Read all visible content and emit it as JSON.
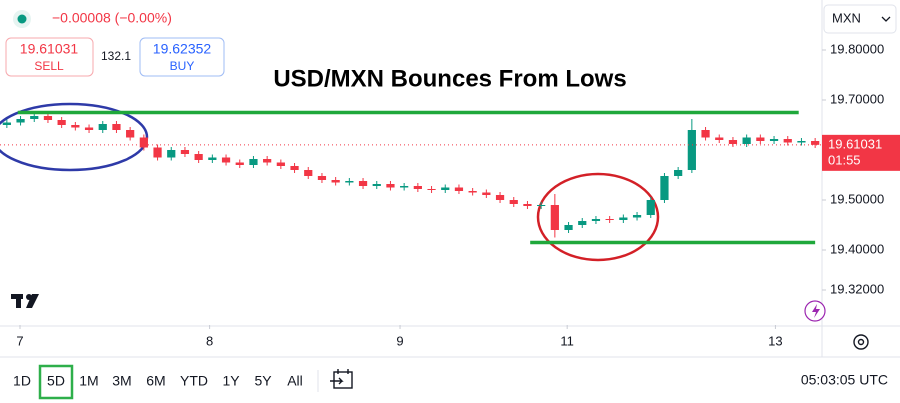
{
  "header": {
    "change": "−0.00008 (−0.00%)",
    "sell_price": "19.61031",
    "sell_label": "SELL",
    "spread": "132.1",
    "buy_price": "19.62352",
    "buy_label": "BUY",
    "currency": "MXN"
  },
  "chart_data": {
    "type": "candlestick",
    "title": "USD/MXN Bounces From Lows",
    "up_color": "#089981",
    "down_color": "#f23645",
    "open": [
      19.65,
      19.655,
      19.662,
      19.668,
      19.66,
      19.65,
      19.645,
      19.64,
      19.652,
      19.64,
      19.625,
      19.605,
      19.585,
      19.6,
      19.592,
      19.58,
      19.585,
      19.575,
      19.57,
      19.582,
      19.575,
      19.568,
      19.56,
      19.548,
      19.54,
      19.535,
      19.538,
      19.528,
      19.532,
      19.525,
      19.528,
      19.522,
      19.52,
      19.525,
      19.518,
      19.515,
      19.51,
      19.5,
      19.492,
      19.488,
      19.49,
      19.44,
      19.45,
      19.458,
      19.462,
      19.46,
      19.465,
      19.47,
      19.5,
      19.548,
      19.56,
      19.64,
      19.625,
      19.62,
      19.612,
      19.625,
      19.618,
      19.622,
      19.615,
      19.618
    ],
    "high": [
      19.661,
      19.668,
      19.674,
      19.674,
      19.666,
      19.656,
      19.651,
      19.658,
      19.658,
      19.646,
      19.631,
      19.611,
      19.606,
      19.606,
      19.598,
      19.591,
      19.591,
      19.581,
      19.588,
      19.588,
      19.581,
      19.574,
      19.566,
      19.554,
      19.546,
      19.544,
      19.544,
      19.538,
      19.538,
      19.534,
      19.534,
      19.528,
      19.531,
      19.531,
      19.524,
      19.521,
      19.516,
      19.506,
      19.498,
      19.496,
      19.512,
      19.456,
      19.464,
      19.468,
      19.468,
      19.471,
      19.476,
      19.506,
      19.554,
      19.566,
      19.662,
      19.646,
      19.631,
      19.626,
      19.631,
      19.631,
      19.628,
      19.628,
      19.624,
      19.624
    ],
    "low": [
      19.644,
      19.649,
      19.656,
      19.654,
      19.644,
      19.639,
      19.634,
      19.634,
      19.634,
      19.619,
      19.599,
      19.579,
      19.579,
      19.586,
      19.574,
      19.574,
      19.569,
      19.564,
      19.564,
      19.569,
      19.562,
      19.554,
      19.542,
      19.534,
      19.529,
      19.529,
      19.522,
      19.522,
      19.519,
      19.519,
      19.516,
      19.514,
      19.514,
      19.512,
      19.509,
      19.504,
      19.494,
      19.486,
      19.482,
      19.482,
      19.425,
      19.434,
      19.444,
      19.452,
      19.454,
      19.454,
      19.459,
      19.464,
      19.494,
      19.542,
      19.554,
      19.619,
      19.614,
      19.606,
      19.606,
      19.612,
      19.612,
      19.609,
      19.609,
      19.604
    ],
    "close": [
      19.655,
      19.662,
      19.668,
      19.66,
      19.65,
      19.645,
      19.64,
      19.652,
      19.64,
      19.625,
      19.605,
      19.585,
      19.6,
      19.592,
      19.58,
      19.585,
      19.575,
      19.57,
      19.582,
      19.575,
      19.568,
      19.56,
      19.548,
      19.54,
      19.535,
      19.538,
      19.528,
      19.532,
      19.525,
      19.528,
      19.522,
      19.52,
      19.525,
      19.518,
      19.515,
      19.51,
      19.5,
      19.492,
      19.488,
      19.49,
      19.44,
      19.45,
      19.458,
      19.462,
      19.46,
      19.465,
      19.47,
      19.5,
      19.548,
      19.56,
      19.64,
      19.625,
      19.62,
      19.612,
      19.625,
      19.618,
      19.622,
      19.615,
      19.618,
      19.61031
    ],
    "xlim": [
      -0.5,
      59.5
    ],
    "xticks": [
      {
        "value": 0.96,
        "label": "7"
      },
      {
        "value": 14.8,
        "label": "8"
      },
      {
        "value": 28.7,
        "label": "9"
      },
      {
        "value": 40.9,
        "label": "11"
      },
      {
        "value": 56.1,
        "label": "13"
      }
    ],
    "ylim": [
      19.25,
      19.9
    ],
    "yticks": [
      {
        "value": 19.32,
        "label": "19.32000"
      },
      {
        "value": 19.4,
        "label": "19.40000"
      },
      {
        "value": 19.5,
        "label": "19.50000"
      },
      {
        "value": 19.7,
        "label": "19.70000"
      },
      {
        "value": 19.8,
        "label": "19.80000"
      }
    ],
    "levels": [
      {
        "value": 19.675,
        "x": [
          0.8,
          57.8
        ],
        "color": "#1fa83b"
      },
      {
        "value": 19.415,
        "x": [
          38.2,
          59
        ],
        "color": "#1fa83b"
      }
    ],
    "last_price": 19.61031,
    "countdown": "01:55",
    "last_color": "#f23645"
  },
  "toolbar": {
    "ranges": [
      "1D",
      "5D",
      "1M",
      "3M",
      "6M",
      "YTD",
      "1Y",
      "5Y",
      "All"
    ],
    "selected_index": 1,
    "clock": "05:03:05 UTC"
  }
}
